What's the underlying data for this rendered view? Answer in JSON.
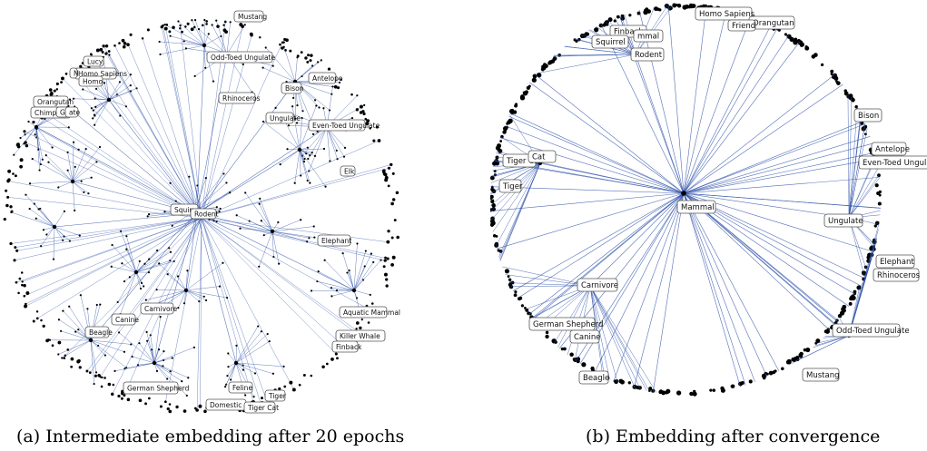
{
  "panels": [
    {
      "id": "a",
      "caption": "(a) Intermediate embedding after 20 epochs",
      "labels": [
        "Mustang",
        "Odd-Toed Ungulate",
        "Lucy",
        "Homo Sapiens",
        "N",
        "Homo",
        "Orangutan",
        "Chimpanzee",
        "Gray",
        "ate",
        "Rhinoceros",
        "Bison",
        "Antelope",
        "Ungulate",
        "Even-Toed Ungulate",
        "Elk",
        "Squirrel",
        "Rodent",
        "Elephant",
        "Carnivore",
        "Canine",
        "Beagle",
        "Aquatic Mammal",
        "Killer Whale",
        "Finback",
        "German Shepherd",
        "Feline",
        "Domestic Cat",
        "Tiger Cat",
        "Tiger"
      ]
    },
    {
      "id": "b",
      "caption": "(b) Embedding after convergence",
      "labels": [
        "Homo Sapiens",
        "Orangutan",
        "Friend",
        "Finback",
        "mmal",
        "Squirrel",
        "Rodent",
        "Tiger Cat",
        "Cat",
        "Tiger",
        "Mammal",
        "Ungulate",
        "Bison",
        "Antelope",
        "Even-Toed Ungulate",
        "Elephant",
        "Rhinoceros",
        "Carnivore",
        "German Shepherd",
        "Canine",
        "Odd-Toed Ungulate",
        "Beagle",
        "Mustang"
      ]
    }
  ],
  "colors": {
    "edge": "#3355aa",
    "node": "#000000",
    "label_border": "#555555"
  }
}
